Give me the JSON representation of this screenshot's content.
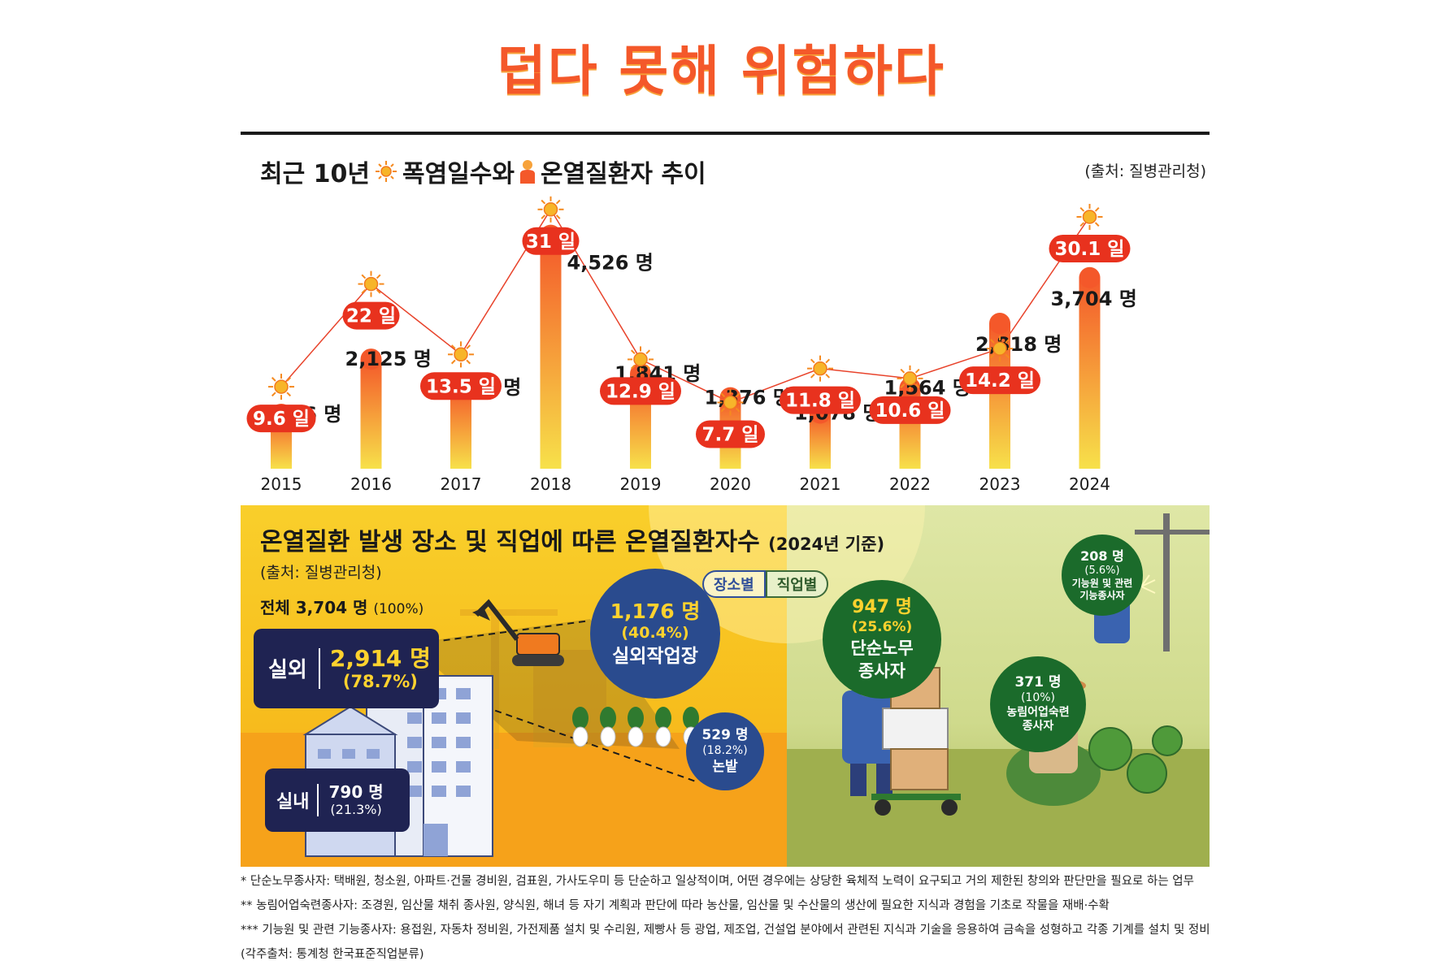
{
  "title": "덥다 못해 위험하다",
  "section1": {
    "heading_prefix": "최근 10년",
    "heading_days": "폭염일수와",
    "heading_patients": "온열질환자 추이",
    "source": "(출처: 질병관리청)"
  },
  "chart_data": {
    "type": "bar",
    "categories": [
      "2015",
      "2016",
      "2017",
      "2018",
      "2019",
      "2020",
      "2021",
      "2022",
      "2023",
      "2024"
    ],
    "series": [
      {
        "unit": "명",
        "values": [
          1056,
          2125,
          1574,
          4526,
          1841,
          1376,
          1078,
          1564,
          2818,
          3704
        ],
        "labels": [
          "1,056",
          "2,125",
          "1,574",
          "4,526",
          "1,841",
          "1,376",
          "1,078",
          "1,564",
          "2,818",
          "3,704"
        ]
      },
      {
        "unit": "일",
        "type": "line",
        "values": [
          9.6,
          22,
          13.5,
          31,
          12.9,
          7.7,
          11.8,
          10.6,
          14.2,
          30.1
        ],
        "labels": [
          "9.6",
          "22",
          "13.5",
          "31",
          "12.9",
          "7.7",
          "11.8",
          "10.6",
          "14.2",
          "30.1"
        ]
      }
    ],
    "colors": {
      "bar_top": "#f4582a",
      "bar_bottom": "#f7e14a",
      "line": "#e8432b",
      "day_label": "#e8321e",
      "sun": "#f58a1f"
    }
  },
  "section2": {
    "title": "온열질환 발생 장소 및 직업에 따른 온열질환자수",
    "title_sub": "(2024년 기준)",
    "source": "(출처: 질병관리청)",
    "total_label": "전체 3,704 명",
    "total_pct": "(100%)",
    "toggle": {
      "place": "장소별",
      "job": "직업별"
    },
    "outdoor": {
      "label": "실외",
      "value": "2,914 명",
      "pct": "(78.7%)"
    },
    "indoor": {
      "label": "실내",
      "value": "790 명",
      "pct": "(21.3%)"
    },
    "site": {
      "value": "1,176 명",
      "pct": "(40.4%)",
      "label": "실외작업장"
    },
    "field": {
      "value": "529 명",
      "pct": "(18.2%)",
      "label": "논밭"
    },
    "simple_labor": {
      "value": "947 명",
      "pct": "(25.6%)",
      "label1": "단순노무",
      "label2": "종사자"
    },
    "technician": {
      "value": "208 명",
      "pct": "(5.6%)",
      "label1": "기능원 및 관련",
      "label2": "기능종사자"
    },
    "agri": {
      "value": "371 명",
      "pct": "(10%)",
      "label1": "농림어업숙련",
      "label2": "종사자"
    }
  },
  "footnotes": [
    "* 단순노무종사자: 택배원, 청소원, 아파트·건물 경비원, 검표원, 가사도우미 등 단순하고 일상적이며, 어떤 경우에는 상당한 육체적 노력이 요구되고 거의 제한된 창의와 판단만을 필요로 하는 업무",
    "** 농림어업숙련종사자: 조경원, 임산물 채취 종사원, 양식원, 해녀 등 자기 계획과 판단에 따라 농산물, 임산물 및 수산물의 생산에 필요한 지식과 경험을 기초로 작물을 재배·수확",
    "*** 기능원 및 관련 기능종사자: 용접원, 자동차 정비원, 가전제품 설치 및 수리원, 제빵사 등 광업, 제조업, 건설업 분야에서 관련된 지식과 기술을 응용하여 금속을 성형하고 각종 기계를 설치 및 정비",
    "(각주출처: 통계청 한국표준직업분류)"
  ]
}
